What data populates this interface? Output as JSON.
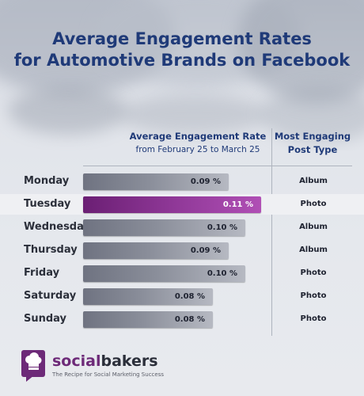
{
  "chart_data": {
    "type": "bar",
    "title": "Average Engagement Rates for Automotive Brands on Facebook",
    "title_lines": [
      "Average Engagement Rates",
      "for Automotive Brands on Facebook"
    ],
    "value_header": "Average Engagement Rate",
    "value_subheader": "from February 25 to March 25",
    "type_header_lines": [
      "Most Engaging",
      "Post Type"
    ],
    "categories": [
      "Monday",
      "Tuesday",
      "Wednesday",
      "Thursday",
      "Friday",
      "Saturday",
      "Sunday"
    ],
    "values": [
      0.09,
      0.11,
      0.1,
      0.09,
      0.1,
      0.08,
      0.08
    ],
    "value_labels": [
      "0.09 %",
      "0.11 %",
      "0.10 %",
      "0.09 %",
      "0.10 %",
      "0.08 %",
      "0.08 %"
    ],
    "post_types": [
      "Album",
      "Photo",
      "Album",
      "Album",
      "Photo",
      "Photo",
      "Photo"
    ],
    "highlight_index": 1,
    "colors": {
      "bar": "#8a8e9a",
      "highlight": "#923a9a",
      "title": "#1f3a78"
    }
  },
  "branding": {
    "name_part1": "social",
    "name_part2": "bakers",
    "tagline": "The Recipe for Social Marketing Success",
    "icon": "chef-hat-speech-bubble-icon"
  }
}
